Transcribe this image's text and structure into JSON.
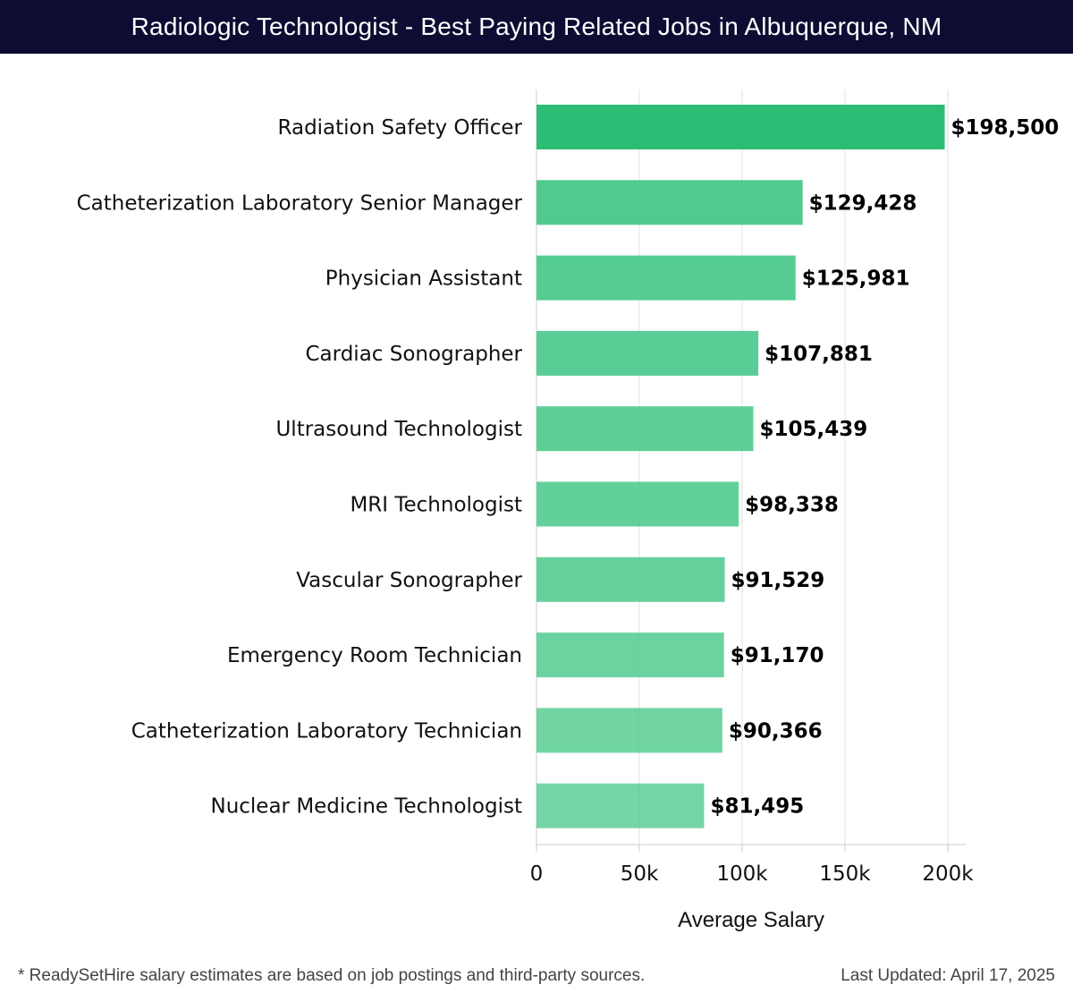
{
  "header": {
    "title": "Radiologic Technologist - Best Paying Related Jobs in Albuquerque, NM"
  },
  "footer": {
    "note": "* ReadySetHire salary estimates are based on job postings and third-party sources.",
    "updated": "Last Updated: April 17, 2025"
  },
  "chart_data": {
    "type": "bar",
    "orientation": "horizontal",
    "title": "Radiologic Technologist - Best Paying Related Jobs in Albuquerque, NM",
    "xlabel": "Average Salary",
    "ylabel": "",
    "xlim": [
      0,
      210000
    ],
    "xticks": [
      0,
      50000,
      100000,
      150000,
      200000
    ],
    "xtick_labels": [
      "0",
      "50k",
      "100k",
      "150k",
      "200k"
    ],
    "grid": "vertical",
    "legend": "none",
    "categories": [
      "Radiation Safety Officer",
      "Catheterization Laboratory Senior Manager",
      "Physician Assistant",
      "Cardiac Sonographer",
      "Ultrasound Technologist",
      "MRI Technologist",
      "Vascular Sonographer",
      "Emergency Room Technician",
      "Catheterization Laboratory Technician",
      "Nuclear Medicine Technologist"
    ],
    "values": [
      198500,
      129428,
      125981,
      107881,
      105439,
      98338,
      91529,
      91170,
      90366,
      81495
    ],
    "value_labels": [
      "$198,500",
      "$129,428",
      "$125,981",
      "$107,881",
      "$105,439",
      "$98,338",
      "$91,529",
      "$91,170",
      "$90,366",
      "$81,495"
    ],
    "colors": {
      "top_bar": "#2bbd74",
      "bars": "#4cc98c",
      "grid": "#e0e0e0",
      "axis": "#cccccc"
    }
  }
}
